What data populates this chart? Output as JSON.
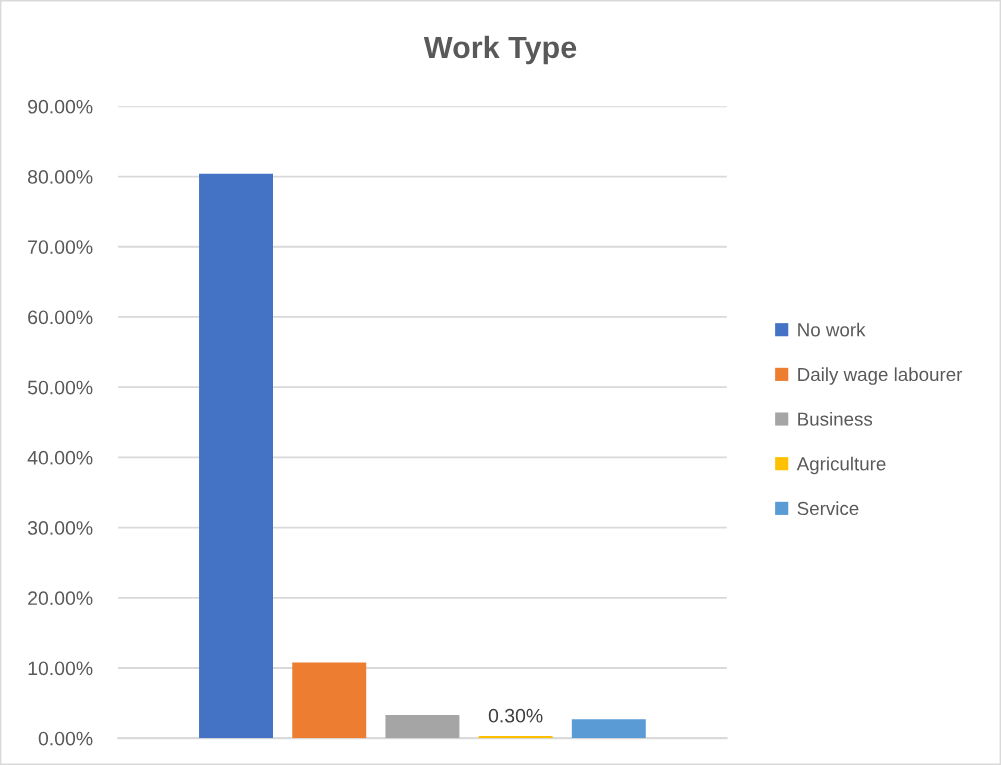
{
  "chart_data": {
    "type": "bar",
    "title": "Work Type",
    "categories": [
      null
    ],
    "series": [
      {
        "name": "No work",
        "color": "#4472c4",
        "values": [
          80.4
        ]
      },
      {
        "name": "Daily wage labourer",
        "color": "#ed7d31",
        "values": [
          10.8
        ]
      },
      {
        "name": "Business",
        "color": "#a5a5a5",
        "values": [
          3.3
        ]
      },
      {
        "name": "Agriculture",
        "color": "#ffc000",
        "values": [
          0.3
        ],
        "value_labels": [
          "0.30%"
        ]
      },
      {
        "name": "Service",
        "color": "#5b9bd5",
        "values": [
          2.7
        ]
      }
    ],
    "ylim": [
      0,
      90
    ],
    "yticks": [
      {
        "value": 0,
        "label": "0.00%"
      },
      {
        "value": 10,
        "label": "10.00%"
      },
      {
        "value": 20,
        "label": "20.00%"
      },
      {
        "value": 30,
        "label": "30.00%"
      },
      {
        "value": 40,
        "label": "40.00%"
      },
      {
        "value": 50,
        "label": "50.00%"
      },
      {
        "value": 60,
        "label": "60.00%"
      },
      {
        "value": 70,
        "label": "70.00%"
      },
      {
        "value": 80,
        "label": "80.00%"
      },
      {
        "value": 90,
        "label": "90.00%"
      }
    ],
    "grid": "y",
    "legend": "right",
    "tick_labels": "y"
  }
}
